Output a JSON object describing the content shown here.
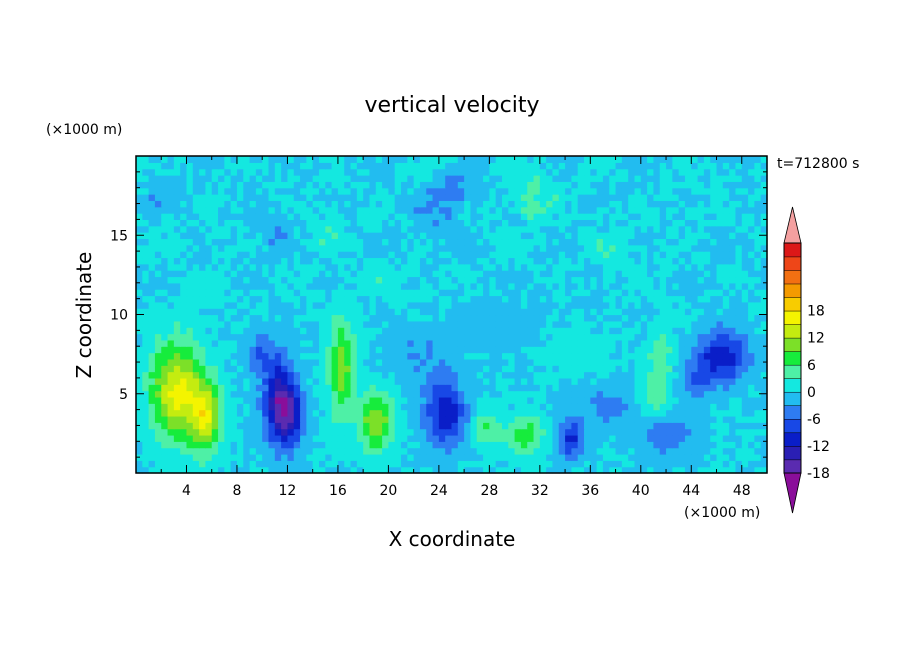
{
  "chart_data": {
    "type": "heatmap",
    "title": "vertical velocity",
    "xlabel": "X coordinate",
    "ylabel": "Z coordinate",
    "x_unit": "(×1000 m)",
    "y_unit": "(×1000 m)",
    "time_label": "t=712800 s",
    "xlim": [
      0,
      50
    ],
    "ylim": [
      0,
      20
    ],
    "x_ticks": [
      "4",
      "8",
      "12",
      "16",
      "20",
      "24",
      "28",
      "32",
      "36",
      "40",
      "44",
      "48"
    ],
    "y_ticks": [
      "5",
      "10",
      "15"
    ],
    "colorbar": {
      "min": -21,
      "max": 21,
      "step": 3,
      "tick_labels": [
        "18",
        "12",
        "6",
        "0",
        "-6",
        "-12",
        "-18"
      ],
      "colors": [
        "#8a0e9a",
        "#5a2bb0",
        "#2a1fb4",
        "#0a1ec8",
        "#1848e6",
        "#2e7cf2",
        "#22bcf0",
        "#14e8e0",
        "#4ef0a6",
        "#16ec3c",
        "#7ce028",
        "#c4ec10",
        "#f4f400",
        "#f8cc00",
        "#f49a00",
        "#f27012",
        "#ee4618",
        "#dc1818",
        "#f4a0a0"
      ]
    },
    "features": [
      {
        "x": 3.2,
        "z": 5.2,
        "w": 16,
        "sx": 2.0,
        "sz": 3.0
      },
      {
        "x": 5.5,
        "z": 3.6,
        "w": 14,
        "sx": 1.2,
        "sz": 2.2
      },
      {
        "x": 11.3,
        "z": 4.5,
        "w": -15,
        "sx": 1.2,
        "sz": 2.6
      },
      {
        "x": 12.3,
        "z": 3.6,
        "w": -10,
        "sx": 1.0,
        "sz": 1.8
      },
      {
        "x": 9.8,
        "z": 7.6,
        "w": -5,
        "sx": 1.2,
        "sz": 1.3
      },
      {
        "x": 16.3,
        "z": 6.6,
        "w": 10,
        "sx": 1.1,
        "sz": 3.2
      },
      {
        "x": 19.0,
        "z": 3.3,
        "w": 12,
        "sx": 1.3,
        "sz": 1.8
      },
      {
        "x": 24.5,
        "z": 3.8,
        "w": -12,
        "sx": 1.6,
        "sz": 2.0
      },
      {
        "x": 22.5,
        "z": 7.5,
        "w": -3,
        "sx": 2.5,
        "sz": 2.0
      },
      {
        "x": 27.8,
        "z": 2.9,
        "w": 6,
        "sx": 1.0,
        "sz": 1.2
      },
      {
        "x": 30.8,
        "z": 2.4,
        "w": 8,
        "sx": 1.5,
        "sz": 1.2
      },
      {
        "x": 34.5,
        "z": 2.2,
        "w": -10,
        "sx": 1.0,
        "sz": 1.2
      },
      {
        "x": 37.5,
        "z": 4.2,
        "w": -4,
        "sx": 2.5,
        "sz": 1.3
      },
      {
        "x": 41.0,
        "z": 4.8,
        "w": 5,
        "sx": 1.2,
        "sz": 1.5
      },
      {
        "x": 42.0,
        "z": 2.4,
        "w": -6,
        "sx": 2.0,
        "sz": 1.3
      },
      {
        "x": 46.5,
        "z": 7.4,
        "w": -11,
        "sx": 2.0,
        "sz": 1.6
      },
      {
        "x": 44.5,
        "z": 6.0,
        "w": -5,
        "sx": 1.5,
        "sz": 1.2
      },
      {
        "x": 31.3,
        "z": 17.5,
        "w": 4,
        "sx": 1.6,
        "sz": 1.8
      },
      {
        "x": 25.0,
        "z": 17.8,
        "w": -4,
        "sx": 1.6,
        "sz": 1.2
      },
      {
        "x": 23.8,
        "z": 16.0,
        "w": -2,
        "sx": 2.5,
        "sz": 1.6
      },
      {
        "x": 10.8,
        "z": 15.4,
        "w": -2,
        "sx": 1.5,
        "sz": 1.6
      },
      {
        "x": 15.3,
        "z": 15.5,
        "w": 2,
        "sx": 1.5,
        "sz": 1.6
      },
      {
        "x": 37.8,
        "z": 14.0,
        "w": 2,
        "sx": 2.0,
        "sz": 1.5
      },
      {
        "x": 5.5,
        "z": 11.6,
        "w": 1.5,
        "sx": 2.0,
        "sz": 1.2
      },
      {
        "x": 20.0,
        "z": 12.0,
        "w": 1.5,
        "sx": 2.0,
        "sz": 1.5
      },
      {
        "x": 28.5,
        "z": 9.5,
        "w": -2,
        "sx": 3.0,
        "sz": 1.5
      },
      {
        "x": 35.0,
        "z": 7.8,
        "w": 2,
        "sx": 2.5,
        "sz": 1.2
      },
      {
        "x": 41.6,
        "z": 7.2,
        "w": 5,
        "sx": 1.0,
        "sz": 1.8
      },
      {
        "x": 2.0,
        "z": 18.0,
        "w": -1.5,
        "sx": 2.0,
        "sz": 1.5
      }
    ]
  }
}
